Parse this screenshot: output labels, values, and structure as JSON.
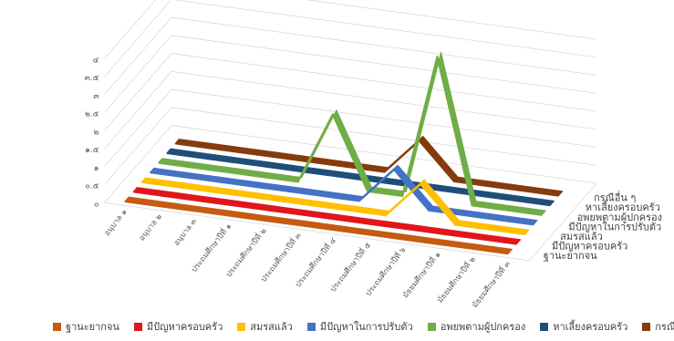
{
  "chart_data": {
    "type": "line",
    "style": "3d-ribbon",
    "categories": [
      "อนุบาล ๑",
      "อนุบาล ๒",
      "อนุบาล ๓",
      "ประถมศึกษาปีที่ ๑",
      "ประถมศึกษาปีที่ ๒",
      "ประถมศึกษาปีที่ ๓",
      "ประถมศึกษาปีที่ ๔",
      "ประถมศึกษาปีที่ ๕",
      "ประถมศึกษาปีที่ ๖",
      "มัธยมศึกษาปีที่ ๑",
      "มัธยมศึกษาปีที่ ๒",
      "มัธยมศึกษาปีที่ ๓"
    ],
    "series": [
      {
        "name": "ฐานะยากจน",
        "color": "#C55A11",
        "values": [
          0,
          0,
          0,
          0,
          0,
          0,
          0,
          0,
          0,
          0,
          0,
          0
        ]
      },
      {
        "name": "มีปัญหาครอบครัว",
        "color": "#E0161B",
        "values": [
          0,
          0,
          0,
          0,
          0,
          0,
          0,
          0,
          0,
          0,
          0,
          0
        ]
      },
      {
        "name": "สมรสแล้ว",
        "color": "#FFC000",
        "values": [
          0,
          0,
          0,
          0,
          0,
          0,
          0,
          0,
          1,
          0,
          0,
          0
        ]
      },
      {
        "name": "มีปัญหาในการปรับตัว",
        "color": "#4472C4",
        "values": [
          0,
          0,
          0,
          0,
          0,
          0,
          0,
          1,
          0,
          0,
          0,
          0
        ]
      },
      {
        "name": "อพยพตามผู้ปกครอง",
        "color": "#70AD47",
        "values": [
          0,
          0,
          0,
          0,
          0,
          2,
          0,
          0,
          4,
          0,
          0,
          0
        ]
      },
      {
        "name": "หาเลี้ยงครอบครัว",
        "color": "#1F4E79",
        "values": [
          0,
          0,
          0,
          0,
          0,
          0,
          0,
          0,
          0,
          0,
          0,
          0
        ]
      },
      {
        "name": "กรณีอื่น ๆ",
        "color": "#843C0C",
        "values": [
          0,
          0,
          0,
          0,
          0,
          0,
          0,
          1,
          0,
          0,
          0,
          0
        ]
      }
    ],
    "y_ticks": [
      "๐",
      "๐.๕",
      "๑",
      "๑.๕",
      "๒",
      "๒.๕",
      "๓",
      "๓.๕",
      "๔"
    ],
    "ylim": [
      0,
      4
    ],
    "grid": true,
    "legend_position": "bottom"
  }
}
